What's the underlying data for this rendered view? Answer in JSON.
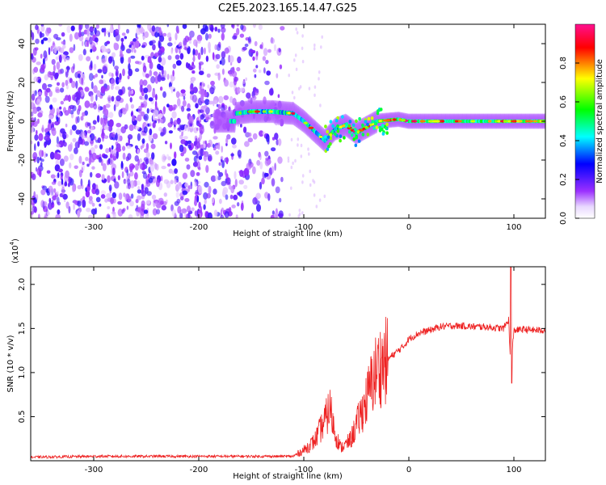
{
  "title": "C2E5.2023.165.14.47.G25",
  "chart_data": [
    {
      "type": "heatmap",
      "xlabel": "Height of straight line (km)",
      "ylabel": "Frequency (Hz)",
      "xlim": [
        -360,
        130
      ],
      "ylim": [
        -50,
        50
      ],
      "xticks": [
        -300,
        -200,
        -100,
        0,
        100
      ],
      "yticks": [
        -40,
        -20,
        0,
        20,
        40
      ],
      "xtick_labels": [
        "-300",
        "-200",
        "-100",
        "0",
        "100"
      ],
      "ytick_labels": [
        "-40",
        "-20",
        "0",
        "20",
        "40"
      ],
      "colorbar": {
        "label": "Normalized spectral amplitude",
        "range": [
          0,
          1
        ],
        "ticks": [
          0.0,
          0.2,
          0.4,
          0.6,
          0.8
        ],
        "tick_labels": [
          "0.0",
          "0.2",
          "0.4",
          "0.6",
          "0.8"
        ],
        "colors": [
          "#ffffff",
          "#9b30ff",
          "#0000ff",
          "#00ffff",
          "#00ff00",
          "#ffff00",
          "#ff0000",
          "#ff00aa"
        ]
      },
      "noise_region_x": [
        -360,
        -120
      ],
      "ridge": [
        {
          "x": -165,
          "y": 4
        },
        {
          "x": -150,
          "y": 5
        },
        {
          "x": -130,
          "y": 5
        },
        {
          "x": -110,
          "y": 4
        },
        {
          "x": -100,
          "y": 0
        },
        {
          "x": -90,
          "y": -5
        },
        {
          "x": -80,
          "y": -10
        },
        {
          "x": -70,
          "y": -4
        },
        {
          "x": -60,
          "y": -2
        },
        {
          "x": -50,
          "y": -6
        },
        {
          "x": -40,
          "y": -3
        },
        {
          "x": -30,
          "y": 0
        },
        {
          "x": -10,
          "y": 1
        },
        {
          "x": 0,
          "y": 0
        },
        {
          "x": 50,
          "y": 0
        },
        {
          "x": 130,
          "y": 0
        }
      ],
      "grid": false
    },
    {
      "type": "line",
      "xlabel": "Height of straight line (km)",
      "ylabel": "SNR (10 * v/v)",
      "y_multiplier": "(x10",
      "y_multiplier_exp": "4",
      "y_multiplier_close": ")",
      "xlim": [
        -360,
        130
      ],
      "ylim": [
        0,
        2.2
      ],
      "xticks": [
        -300,
        -200,
        -100,
        0,
        100
      ],
      "yticks": [
        0.5,
        1.0,
        1.5,
        2.0
      ],
      "xtick_labels": [
        "-300",
        "-200",
        "-100",
        "0",
        "100"
      ],
      "ytick_labels": [
        "0.5",
        "1.0",
        "1.5",
        "2.0"
      ],
      "color": "#ee2222",
      "series": [
        {
          "x": [
            -360,
            -300,
            -250,
            -200,
            -150,
            -110,
            -100,
            -90,
            -80,
            -75,
            -70,
            -65,
            -60,
            -55,
            -50,
            -45,
            -40,
            -35,
            -30,
            -25,
            -20,
            -15,
            -10,
            -5,
            0,
            10,
            20,
            30,
            40,
            50,
            60,
            70,
            80,
            90,
            95,
            97,
            100,
            110,
            120,
            130
          ],
          "y": [
            0.04,
            0.05,
            0.05,
            0.05,
            0.05,
            0.05,
            0.12,
            0.22,
            0.45,
            0.6,
            0.3,
            0.15,
            0.18,
            0.25,
            0.4,
            0.55,
            0.7,
            0.9,
            1.05,
            1.1,
            1.15,
            1.2,
            1.25,
            1.3,
            1.38,
            1.45,
            1.48,
            1.52,
            1.53,
            1.53,
            1.52,
            1.52,
            1.51,
            1.5,
            1.6,
            1.0,
            1.48,
            1.49,
            1.48,
            1.48
          ]
        }
      ],
      "grid": false
    }
  ]
}
